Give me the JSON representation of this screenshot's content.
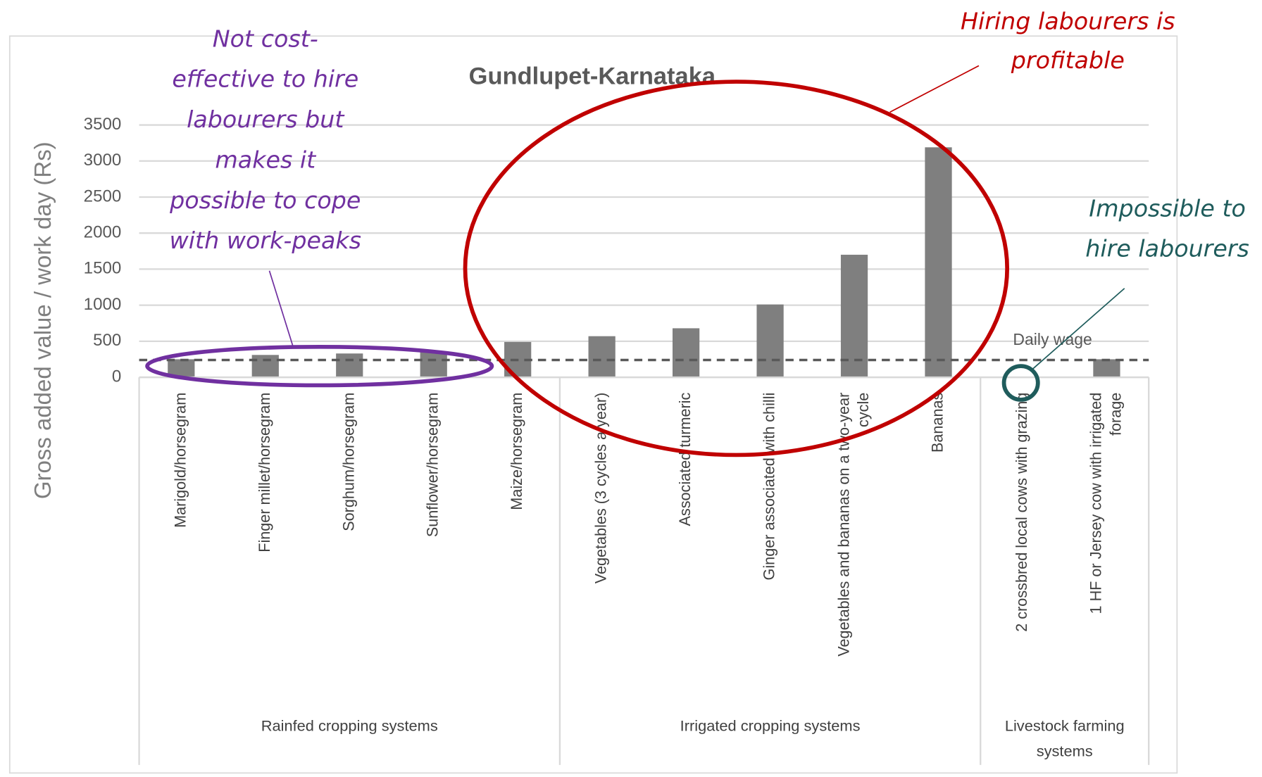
{
  "chart_data": {
    "type": "bar",
    "title": "Gundlupet-Karnataka",
    "y_label": "Gross added value / work day (Rs)",
    "categories": [
      "Marigold/horsegram",
      "Finger millet/horsegram",
      "Sorghum/horsegram",
      "Sunflower/horsegram",
      "Maize/horsegram",
      "Vegetables (3 cycles a year)",
      "Associated turmeric",
      "Ginger associated with chilli",
      "Vegetables and bananas on a two-year cycle",
      "Bananas",
      "2 crossbred local cows with grazing",
      "1 HF or Jersey cow with irrigated forage"
    ],
    "values": [
      250,
      310,
      330,
      350,
      490,
      570,
      680,
      1010,
      1700,
      3190,
      0,
      250
    ],
    "color": "#7f7f7f",
    "groups": [
      {
        "name": "Rainfed cropping systems",
        "count": 5
      },
      {
        "name": "Irrigated cropping systems",
        "count": 5
      },
      {
        "name": "Livestock farming systems",
        "count": 2
      }
    ],
    "reference_line": {
      "name": "Daily wage",
      "value": 240,
      "color": "#595959"
    },
    "ylim": [
      0,
      3500
    ],
    "yticks": [
      0,
      500,
      1000,
      1500,
      2000,
      2500,
      3000,
      3500
    ],
    "grid": true,
    "annotations": [
      {
        "lines": [
          "Not cost-",
          "effective to hire",
          "labourers but",
          "makes it",
          "possible to cope",
          "with work-peaks"
        ],
        "color": "#7030a0"
      },
      {
        "lines": [
          "Hiring labourers is",
          "profitable"
        ],
        "color": "#c00000"
      },
      {
        "lines": [
          "Impossible to",
          "hire labourers"
        ],
        "color": "#1f5c5c"
      }
    ]
  }
}
